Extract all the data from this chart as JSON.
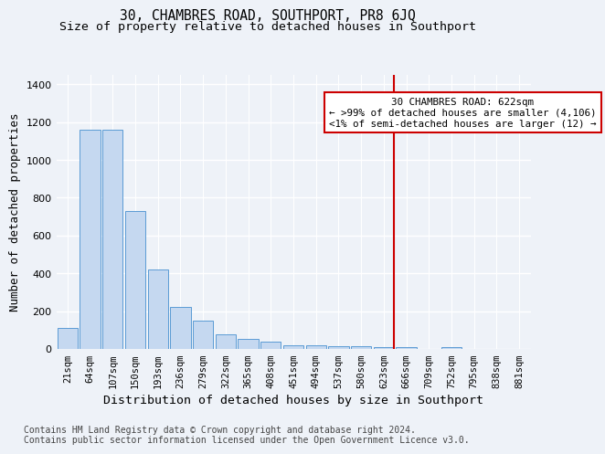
{
  "title": "30, CHAMBRES ROAD, SOUTHPORT, PR8 6JQ",
  "subtitle": "Size of property relative to detached houses in Southport",
  "xlabel": "Distribution of detached houses by size in Southport",
  "ylabel": "Number of detached properties",
  "bar_labels": [
    "21sqm",
    "64sqm",
    "107sqm",
    "150sqm",
    "193sqm",
    "236sqm",
    "279sqm",
    "322sqm",
    "365sqm",
    "408sqm",
    "451sqm",
    "494sqm",
    "537sqm",
    "580sqm",
    "623sqm",
    "666sqm",
    "709sqm",
    "752sqm",
    "795sqm",
    "838sqm",
    "881sqm"
  ],
  "bar_values": [
    110,
    1160,
    1160,
    730,
    420,
    220,
    150,
    78,
    52,
    38,
    20,
    17,
    14,
    15,
    10,
    10,
    0,
    12,
    0,
    0,
    0
  ],
  "bar_color": "#c5d8f0",
  "bar_edge_color": "#5b9bd5",
  "marker_index": 14,
  "marker_color": "#cc0000",
  "annotation_line1": "30 CHAMBRES ROAD: 622sqm",
  "annotation_line2": "← >99% of detached houses are smaller (4,106)",
  "annotation_line3": "<1% of semi-detached houses are larger (12) →",
  "ylim": [
    0,
    1450
  ],
  "yticks": [
    0,
    200,
    400,
    600,
    800,
    1000,
    1200,
    1400
  ],
  "footer_line1": "Contains HM Land Registry data © Crown copyright and database right 2024.",
  "footer_line2": "Contains public sector information licensed under the Open Government Licence v3.0.",
  "background_color": "#eef2f8",
  "plot_background": "#eef2f8",
  "grid_color": "#ffffff",
  "title_fontsize": 10.5,
  "subtitle_fontsize": 9.5,
  "axis_label_fontsize": 9,
  "tick_fontsize": 7.5,
  "footer_fontsize": 7
}
